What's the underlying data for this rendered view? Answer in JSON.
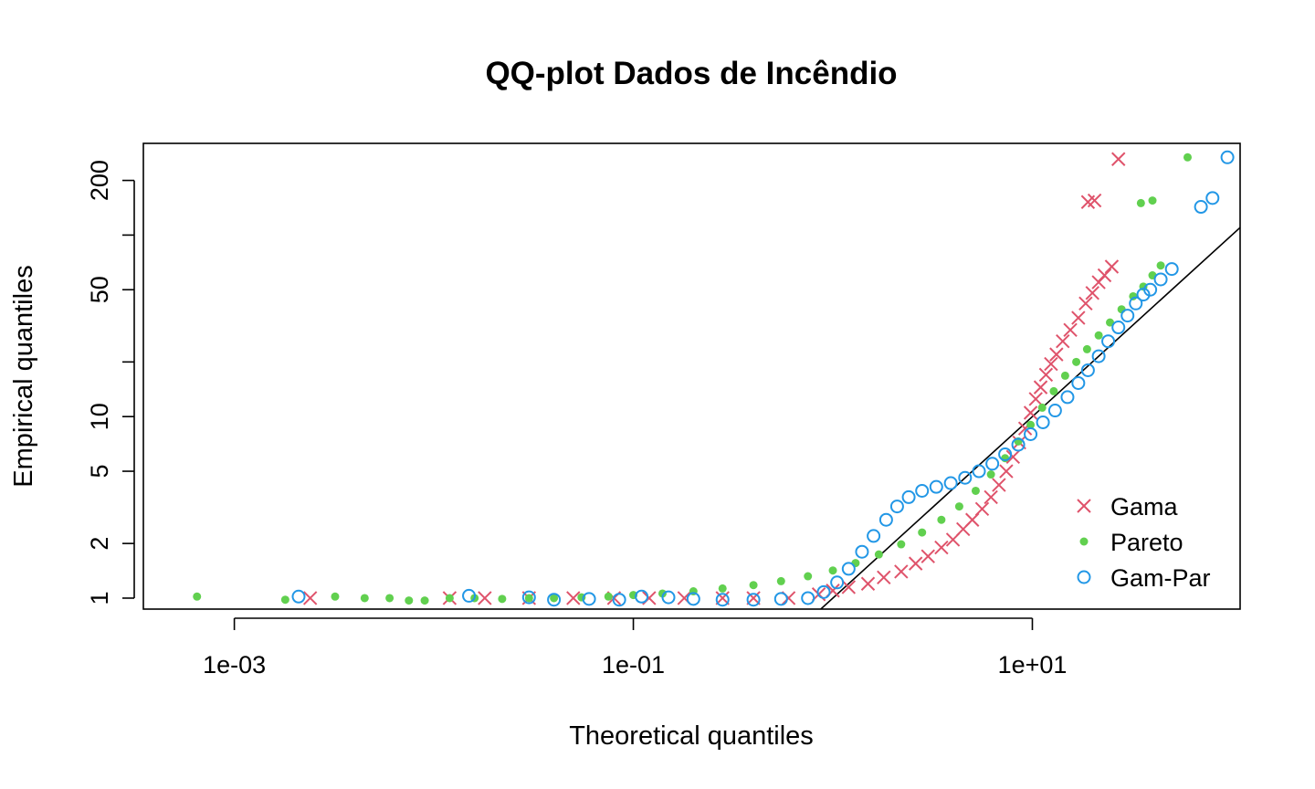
{
  "chart_data": {
    "type": "scatter",
    "title": "QQ-plot Dados de Incêndio",
    "xlabel": "Theoretical quantiles",
    "ylabel": "Empirical quantiles",
    "x_scale": "log",
    "y_scale": "log",
    "xlim": [
      0.00035,
      110
    ],
    "ylim": [
      0.87,
      320
    ],
    "x_ticks": [
      {
        "value": 0.001,
        "label": "1e-03"
      },
      {
        "value": 0.1,
        "label": "1e-01"
      },
      {
        "value": 10,
        "label": "1e+01"
      }
    ],
    "y_ticks": [
      {
        "value": 1,
        "label": "1"
      },
      {
        "value": 2,
        "label": "2"
      },
      {
        "value": 5,
        "label": "5"
      },
      {
        "value": 10,
        "label": "10"
      },
      {
        "value": 20,
        "label": ""
      },
      {
        "value": 50,
        "label": "50"
      },
      {
        "value": 100,
        "label": ""
      },
      {
        "value": 200,
        "label": "200"
      }
    ],
    "grid": false,
    "reference_line": "y = x",
    "legend_position": "bottom-right",
    "series": [
      {
        "name": "Gama",
        "marker": "x",
        "color": "#DF536B",
        "points": [
          [
            0.0024,
            1.0
          ],
          [
            0.012,
            1.0
          ],
          [
            0.018,
            1.0
          ],
          [
            0.03,
            1.0
          ],
          [
            0.05,
            1.0
          ],
          [
            0.08,
            1.0
          ],
          [
            0.12,
            1.0
          ],
          [
            0.18,
            1.0
          ],
          [
            0.28,
            1.0
          ],
          [
            0.4,
            1.0
          ],
          [
            0.6,
            1.0
          ],
          [
            0.85,
            1.05
          ],
          [
            1.0,
            1.1
          ],
          [
            1.2,
            1.15
          ],
          [
            1.5,
            1.2
          ],
          [
            1.8,
            1.3
          ],
          [
            2.2,
            1.4
          ],
          [
            2.6,
            1.55
          ],
          [
            3.0,
            1.7
          ],
          [
            3.5,
            1.9
          ],
          [
            4.0,
            2.1
          ],
          [
            4.5,
            2.4
          ],
          [
            5.0,
            2.7
          ],
          [
            5.6,
            3.1
          ],
          [
            6.2,
            3.6
          ],
          [
            6.8,
            4.2
          ],
          [
            7.4,
            5.0
          ],
          [
            8.0,
            6.0
          ],
          [
            8.6,
            7.2
          ],
          [
            9.2,
            8.6
          ],
          [
            9.8,
            10.5
          ],
          [
            10.4,
            12.5
          ],
          [
            11.0,
            14.5
          ],
          [
            11.7,
            17.0
          ],
          [
            12.4,
            19.5
          ],
          [
            13.2,
            22.0
          ],
          [
            14.2,
            26.0
          ],
          [
            15.5,
            30.0
          ],
          [
            17.0,
            35.0
          ],
          [
            18.5,
            42.0
          ],
          [
            20.0,
            48.0
          ],
          [
            21.5,
            55.0
          ],
          [
            23.0,
            60.0
          ],
          [
            25.0,
            67.0
          ],
          [
            19.0,
            152.0
          ],
          [
            20.5,
            155.0
          ],
          [
            27.0,
            262.0
          ]
        ]
      },
      {
        "name": "Pareto",
        "marker": "dot",
        "color": "#61D04F",
        "points": [
          [
            0.00065,
            1.02
          ],
          [
            0.0018,
            0.98
          ],
          [
            0.0032,
            1.02
          ],
          [
            0.0045,
            1.0
          ],
          [
            0.006,
            1.0
          ],
          [
            0.0075,
            0.97
          ],
          [
            0.009,
            0.97
          ],
          [
            0.012,
            1.0
          ],
          [
            0.016,
            1.0
          ],
          [
            0.022,
            0.99
          ],
          [
            0.03,
            1.0
          ],
          [
            0.04,
            1.0
          ],
          [
            0.055,
            1.01
          ],
          [
            0.075,
            1.02
          ],
          [
            0.1,
            1.04
          ],
          [
            0.14,
            1.06
          ],
          [
            0.2,
            1.09
          ],
          [
            0.28,
            1.13
          ],
          [
            0.4,
            1.18
          ],
          [
            0.55,
            1.24
          ],
          [
            0.75,
            1.32
          ],
          [
            1.0,
            1.42
          ],
          [
            1.3,
            1.56
          ],
          [
            1.7,
            1.74
          ],
          [
            2.2,
            1.98
          ],
          [
            2.8,
            2.3
          ],
          [
            3.5,
            2.7
          ],
          [
            4.3,
            3.2
          ],
          [
            5.2,
            3.9
          ],
          [
            6.2,
            4.8
          ],
          [
            7.3,
            5.9
          ],
          [
            8.5,
            7.3
          ],
          [
            9.8,
            9.0
          ],
          [
            11.2,
            11.2
          ],
          [
            12.8,
            13.8
          ],
          [
            14.6,
            16.8
          ],
          [
            16.6,
            20.0
          ],
          [
            18.8,
            23.5
          ],
          [
            21.5,
            28.0
          ],
          [
            24.5,
            33.0
          ],
          [
            28.0,
            39.0
          ],
          [
            32.0,
            46.0
          ],
          [
            36.0,
            52.0
          ],
          [
            40.0,
            60.0
          ],
          [
            44.0,
            68.0
          ],
          [
            35.0,
            150.0
          ],
          [
            40.0,
            155.0
          ],
          [
            60.0,
            268.0
          ]
        ]
      },
      {
        "name": "Gam-Par",
        "marker": "circle",
        "color": "#2297E6",
        "points": [
          [
            0.0021,
            1.02
          ],
          [
            0.015,
            1.03
          ],
          [
            0.03,
            1.01
          ],
          [
            0.04,
            0.98
          ],
          [
            0.06,
            0.99
          ],
          [
            0.085,
            0.98
          ],
          [
            0.11,
            1.02
          ],
          [
            0.15,
            1.01
          ],
          [
            0.2,
            0.99
          ],
          [
            0.28,
            0.98
          ],
          [
            0.4,
            0.98
          ],
          [
            0.55,
            0.99
          ],
          [
            0.75,
            1.0
          ],
          [
            0.9,
            1.08
          ],
          [
            1.05,
            1.22
          ],
          [
            1.2,
            1.45
          ],
          [
            1.4,
            1.8
          ],
          [
            1.6,
            2.2
          ],
          [
            1.85,
            2.7
          ],
          [
            2.1,
            3.2
          ],
          [
            2.4,
            3.6
          ],
          [
            2.8,
            3.9
          ],
          [
            3.3,
            4.1
          ],
          [
            3.9,
            4.3
          ],
          [
            4.6,
            4.6
          ],
          [
            5.4,
            5.0
          ],
          [
            6.3,
            5.5
          ],
          [
            7.3,
            6.2
          ],
          [
            8.5,
            7.0
          ],
          [
            9.8,
            8.0
          ],
          [
            11.3,
            9.3
          ],
          [
            13.0,
            10.8
          ],
          [
            15.0,
            12.8
          ],
          [
            17.0,
            15.3
          ],
          [
            19.0,
            18.0
          ],
          [
            21.5,
            21.5
          ],
          [
            24.0,
            26.0
          ],
          [
            27.0,
            31.0
          ],
          [
            30.0,
            36.0
          ],
          [
            33.0,
            42.0
          ],
          [
            36.0,
            47.0
          ],
          [
            39.0,
            50.0
          ],
          [
            44.0,
            57.0
          ],
          [
            50.0,
            65.0
          ],
          [
            70.0,
            143.0
          ],
          [
            80.0,
            160.0
          ],
          [
            95.0,
            268.0
          ]
        ]
      }
    ]
  }
}
